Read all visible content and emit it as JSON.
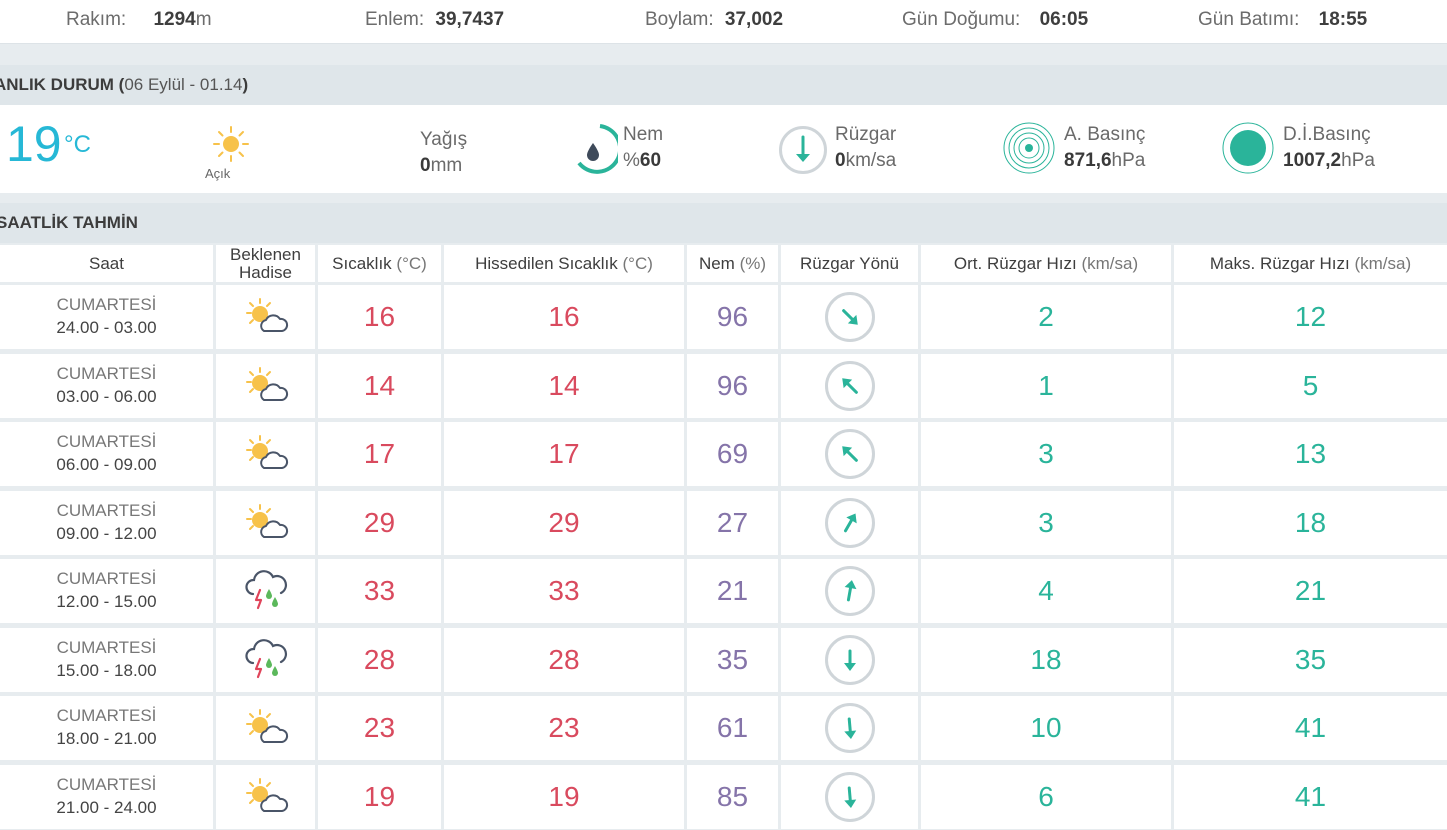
{
  "info_bar": {
    "altitude_label": "Rakım:",
    "altitude_value": "1294",
    "altitude_unit": "m",
    "lat_label": "Enlem:",
    "lat_value": "39,7437",
    "lon_label": "Boylam:",
    "lon_value": "37,002",
    "sunrise_label": "Gün Doğumu:",
    "sunrise_value": "06:05",
    "sunset_label": "Gün Batımı:",
    "sunset_value": "18:55"
  },
  "current": {
    "title": "ANLIK DURUM (",
    "date": "06 Eylül - 01.14",
    "close_paren": ")",
    "temp": "19",
    "temp_unit": "°C",
    "sky_label": "Açık",
    "sky_icon": "sun-icon",
    "rain_label": "Yağış",
    "rain_value": "0",
    "rain_unit": "mm",
    "humidity_label": "Nem",
    "humidity_prefix": "%",
    "humidity_value": "60",
    "wind_label": "Rüzgar",
    "wind_value": "0",
    "wind_unit": "km/sa",
    "pressure_label": "A. Basınç",
    "pressure_value": "871,6",
    "pressure_unit": "hPa",
    "sea_pressure_label": "D.İ.Basınç",
    "sea_pressure_value": "1007,2",
    "sea_pressure_unit": "hPa"
  },
  "forecast": {
    "title": "SAATLİK TAHMİN",
    "headers": {
      "time": "Saat",
      "event_line1": "Beklenen",
      "event_line2": "Hadise",
      "temp": "Sıcaklık",
      "temp_unit": "(°C)",
      "feels": "Hissedilen Sıcaklık",
      "feels_unit": "(°C)",
      "humidity": "Nem",
      "humidity_unit": "(%)",
      "wind_dir": "Rüzgar Yönü",
      "avg_wind": "Ort. Rüzgar Hızı",
      "avg_wind_unit": "(km/sa)",
      "max_wind": "Maks. Rüzgar Hızı",
      "max_wind_unit": "(km/sa)"
    },
    "rows": [
      {
        "day": "CUMARTESİ",
        "range": "24.00 - 03.00",
        "icon": "partly-cloudy-icon",
        "temp": "16",
        "feels": "16",
        "humidity": "96",
        "wind_deg": 135,
        "avg": "2",
        "max": "12"
      },
      {
        "day": "CUMARTESİ",
        "range": "03.00 - 06.00",
        "icon": "partly-cloudy-icon",
        "temp": "14",
        "feels": "14",
        "humidity": "96",
        "wind_deg": 315,
        "avg": "1",
        "max": "5"
      },
      {
        "day": "CUMARTESİ",
        "range": "06.00 - 09.00",
        "icon": "partly-cloudy-icon",
        "temp": "17",
        "feels": "17",
        "humidity": "69",
        "wind_deg": 315,
        "avg": "3",
        "max": "13"
      },
      {
        "day": "CUMARTESİ",
        "range": "09.00 - 12.00",
        "icon": "partly-cloudy-icon",
        "temp": "29",
        "feels": "29",
        "humidity": "27",
        "wind_deg": 30,
        "avg": "3",
        "max": "18"
      },
      {
        "day": "CUMARTESİ",
        "range": "12.00 - 15.00",
        "icon": "thunderstorm-icon",
        "temp": "33",
        "feels": "33",
        "humidity": "21",
        "wind_deg": 10,
        "avg": "4",
        "max": "21"
      },
      {
        "day": "CUMARTESİ",
        "range": "15.00 - 18.00",
        "icon": "thunderstorm-icon",
        "temp": "28",
        "feels": "28",
        "humidity": "35",
        "wind_deg": 180,
        "avg": "18",
        "max": "35"
      },
      {
        "day": "CUMARTESİ",
        "range": "18.00 - 21.00",
        "icon": "partly-cloudy-icon",
        "temp": "23",
        "feels": "23",
        "humidity": "61",
        "wind_deg": 175,
        "avg": "10",
        "max": "41"
      },
      {
        "day": "CUMARTESİ",
        "range": "21.00 - 24.00",
        "icon": "partly-cloudy-icon",
        "temp": "19",
        "feels": "19",
        "humidity": "85",
        "wind_deg": 175,
        "avg": "6",
        "max": "41"
      }
    ]
  }
}
